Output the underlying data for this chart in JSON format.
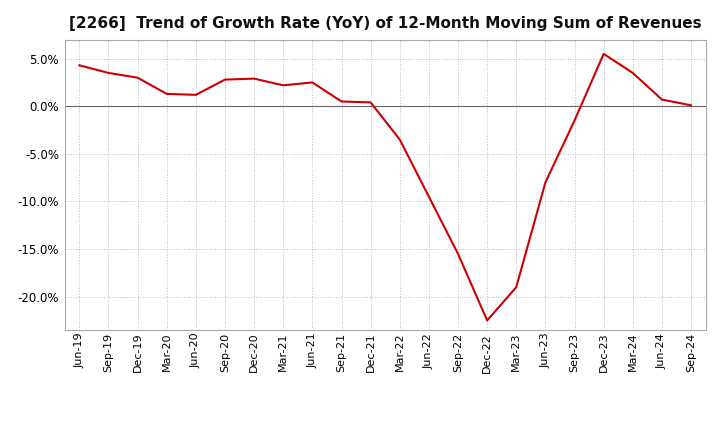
{
  "title": "[2266]  Trend of Growth Rate (YoY) of 12-Month Moving Sum of Revenues",
  "line_color": "#cc0000",
  "background_color": "#ffffff",
  "grid_color": "#bbbbbb",
  "zero_line_color": "#666666",
  "labels": [
    "Jun-19",
    "Sep-19",
    "Dec-19",
    "Mar-20",
    "Jun-20",
    "Sep-20",
    "Dec-20",
    "Mar-21",
    "Jun-21",
    "Sep-21",
    "Dec-21",
    "Mar-22",
    "Jun-22",
    "Sep-22",
    "Dec-22",
    "Mar-23",
    "Jun-23",
    "Sep-23",
    "Dec-23",
    "Mar-24",
    "Jun-24",
    "Sep-24"
  ],
  "values": [
    4.3,
    3.5,
    3.0,
    1.3,
    1.2,
    2.8,
    2.9,
    2.2,
    2.5,
    0.5,
    0.4,
    -3.5,
    -9.5,
    -15.5,
    -22.5,
    -19.0,
    -8.0,
    -1.5,
    5.5,
    3.5,
    0.7,
    0.1
  ],
  "ylim": [
    -23.5,
    7.0
  ],
  "yticks": [
    5.0,
    0.0,
    -5.0,
    -10.0,
    -15.0,
    -20.0
  ],
  "title_fontsize": 11,
  "tick_fontsize": 8,
  "ytick_fontsize": 8.5
}
